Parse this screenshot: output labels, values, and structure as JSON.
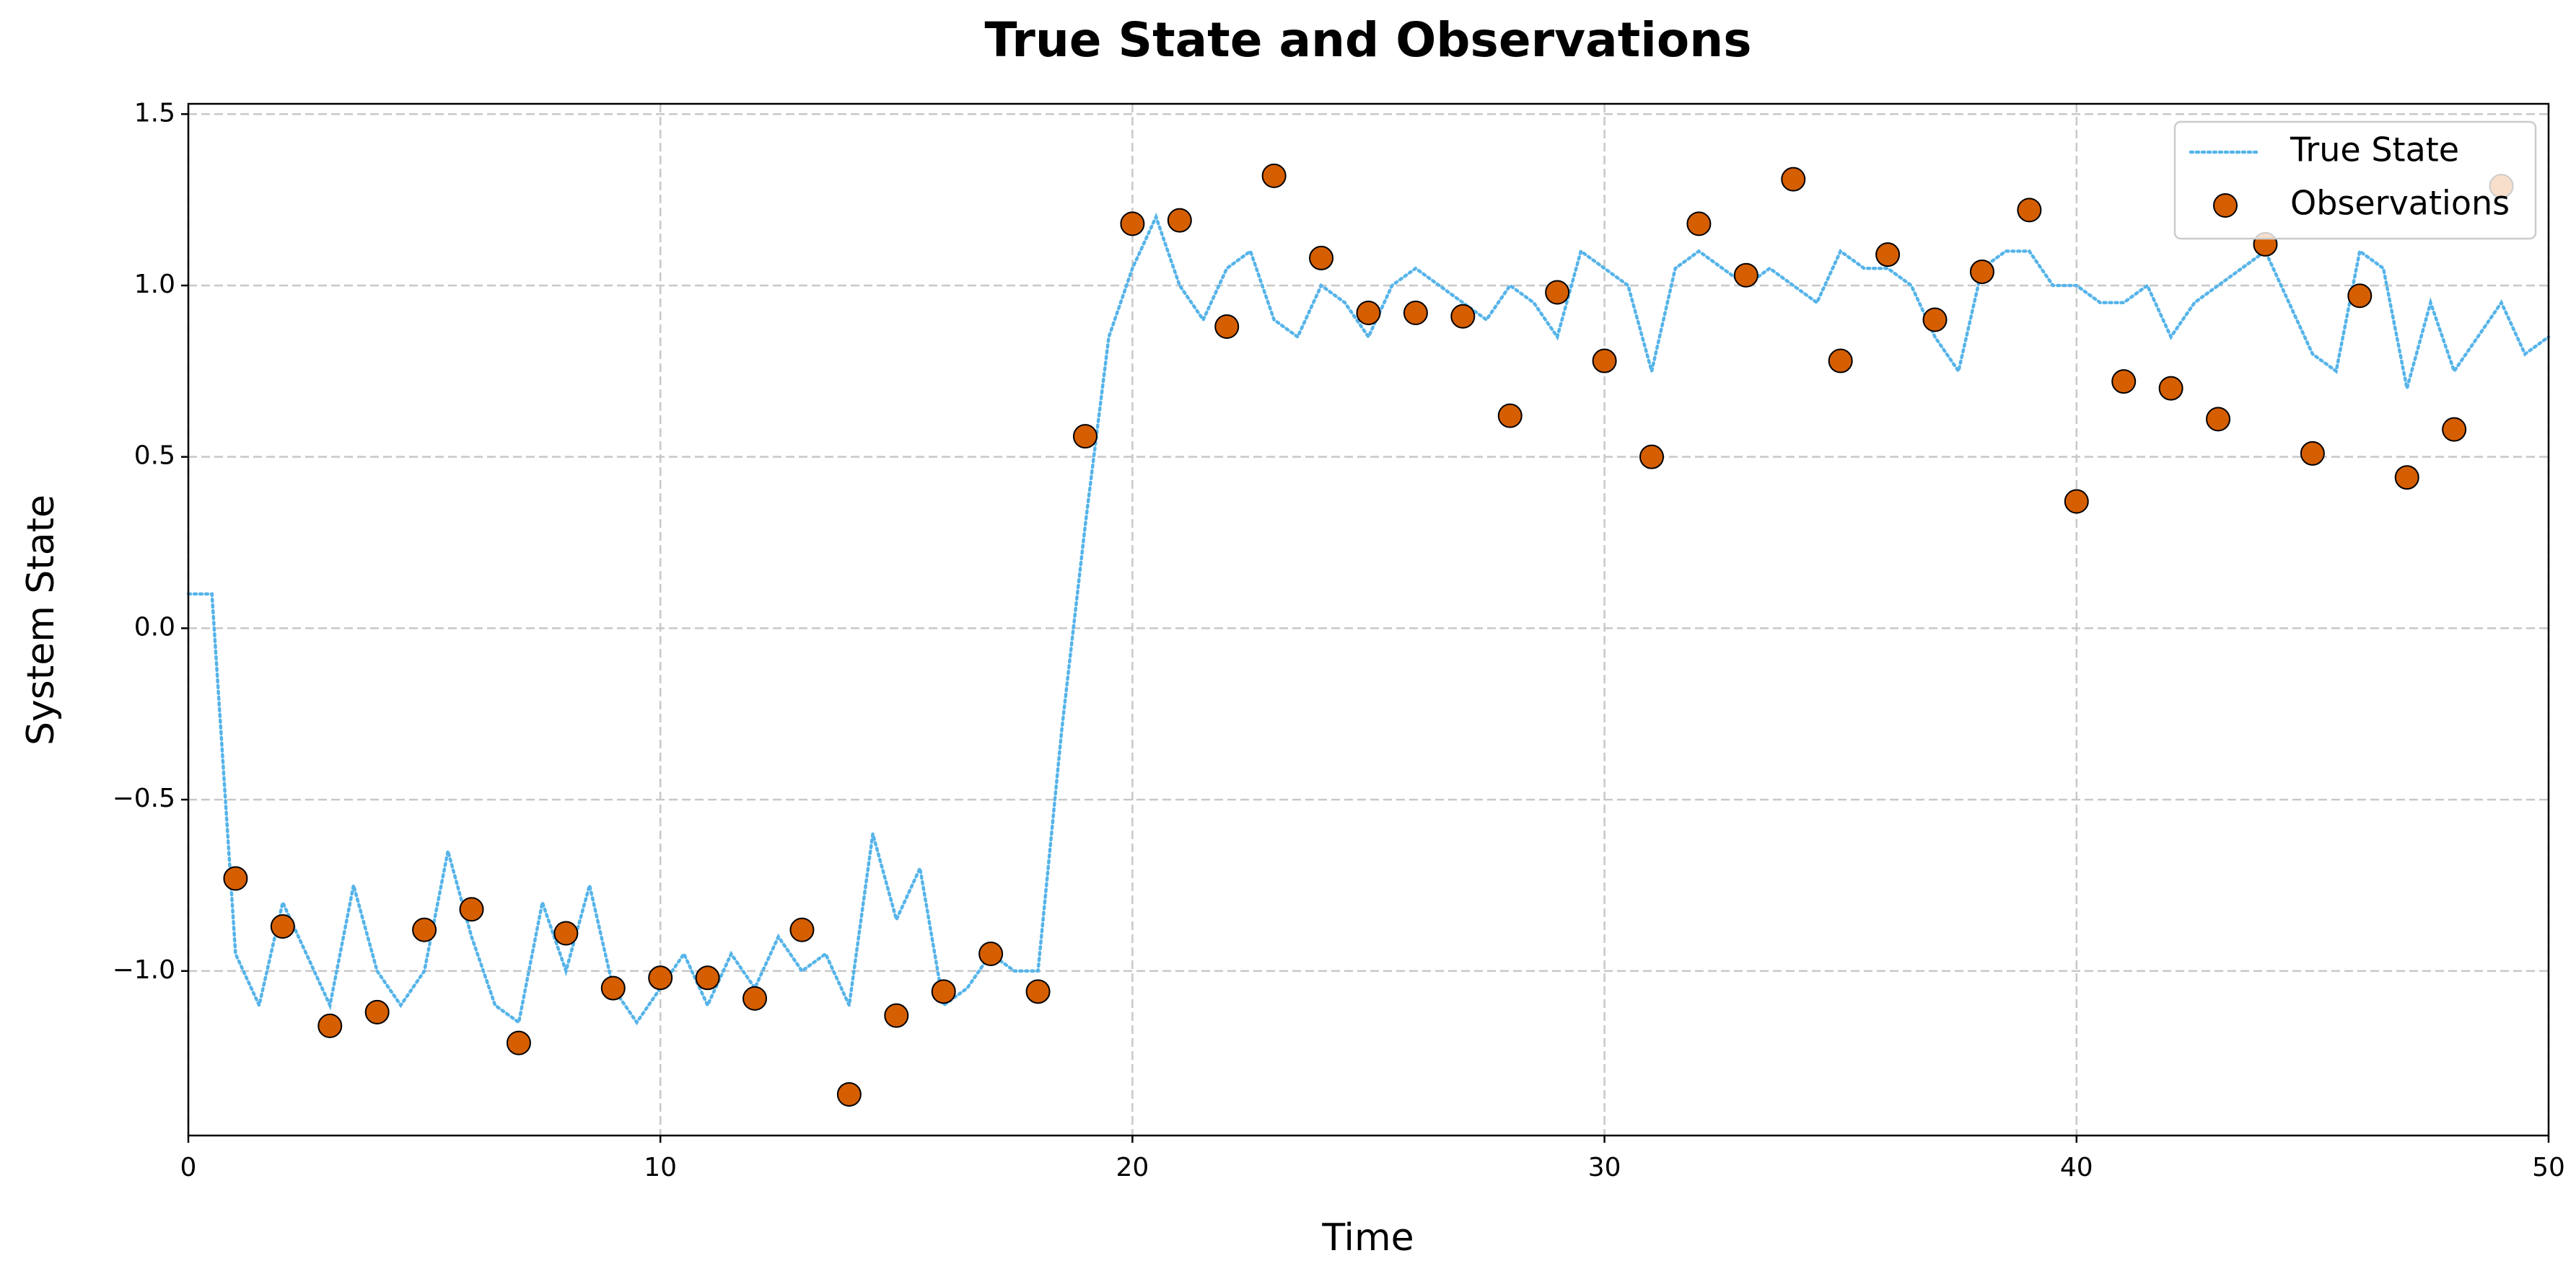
{
  "chart_data": {
    "type": "line",
    "title": "True State and Observations",
    "x_label": "Time",
    "y_label": "System State",
    "xlim": [
      0,
      50
    ],
    "ylim": [
      -1.48,
      1.53
    ],
    "xticks": [
      0,
      10,
      20,
      30,
      40,
      50
    ],
    "yticks": [
      {
        "value": -1,
        "label": "−1.0"
      },
      {
        "value": -0.5,
        "label": "−0.5"
      },
      {
        "value": 0,
        "label": "0.0"
      },
      0.5,
      {
        "value": 1,
        "label": "1.0"
      },
      1.5
    ],
    "grid": true,
    "legend": "upper right",
    "series": [
      {
        "name": "True State",
        "type": "line",
        "color": "#56b4e9",
        "x": [
          0,
          0.5,
          1,
          1.5,
          2,
          2.5,
          3,
          3.5,
          4,
          4.5,
          5,
          5.5,
          6,
          6.5,
          7,
          7.5,
          8,
          8.5,
          9,
          9.5,
          10,
          10.5,
          11,
          11.5,
          12,
          12.5,
          13,
          13.5,
          14,
          14.5,
          15,
          15.5,
          16,
          16.5,
          17,
          17.5,
          18,
          18.5,
          19,
          19.5,
          20,
          20.5,
          21,
          21.5,
          22,
          22.5,
          23,
          23.5,
          24,
          24.5,
          25,
          25.5,
          26,
          26.5,
          27,
          27.5,
          28,
          28.5,
          29,
          29.5,
          30,
          30.5,
          31,
          31.5,
          32,
          32.5,
          33,
          33.5,
          34,
          34.5,
          35,
          35.5,
          36,
          36.5,
          37,
          37.5,
          38,
          38.5,
          39,
          39.5,
          40,
          40.5,
          41,
          41.5,
          42,
          42.5,
          43,
          43.5,
          44,
          44.5,
          45,
          45.5,
          46,
          46.5,
          47,
          47.5,
          48,
          48.5,
          49,
          49.5,
          50
        ],
        "values": [
          0.1,
          0.1,
          -0.95,
          -1.1,
          -0.8,
          -0.95,
          -1.1,
          -0.75,
          -1.0,
          -1.1,
          -1.0,
          -0.65,
          -0.9,
          -1.1,
          -1.15,
          -0.8,
          -1.0,
          -0.75,
          -1.05,
          -1.15,
          -1.05,
          -0.95,
          -1.1,
          -0.95,
          -1.05,
          -0.9,
          -1.0,
          -0.95,
          -1.1,
          -0.6,
          -0.85,
          -0.7,
          -1.1,
          -1.05,
          -0.95,
          -1.0,
          -1.0,
          -0.3,
          0.3,
          0.85,
          1.05,
          1.2,
          1.0,
          0.9,
          1.05,
          1.1,
          0.9,
          0.85,
          1.0,
          0.95,
          0.85,
          1.0,
          1.05,
          1.0,
          0.95,
          0.9,
          1.0,
          0.95,
          0.85,
          1.1,
          1.05,
          1.0,
          0.75,
          1.05,
          1.1,
          1.05,
          1.0,
          1.05,
          1.0,
          0.95,
          1.1,
          1.05,
          1.05,
          1.0,
          0.85,
          0.75,
          1.05,
          1.1,
          1.1,
          1.0,
          1.0,
          0.95,
          0.95,
          1.0,
          0.85,
          0.95,
          1.0,
          1.05,
          1.1,
          0.95,
          0.8,
          0.75,
          1.1,
          1.05,
          0.7,
          0.95,
          0.75,
          0.85,
          0.95,
          0.8,
          0.85
        ]
      },
      {
        "name": "Observations",
        "type": "scatter",
        "color": "#d55e00",
        "x": [
          1,
          2,
          3,
          4,
          5,
          6,
          7,
          8,
          9,
          10,
          11,
          12,
          13,
          14,
          15,
          16,
          17,
          18,
          19,
          20,
          21,
          22,
          23,
          24,
          25,
          26,
          27,
          28,
          29,
          30,
          31,
          32,
          33,
          34,
          35,
          36,
          37,
          38,
          39,
          40,
          41,
          42,
          43,
          44,
          45,
          46,
          47,
          48,
          49
        ],
        "values": [
          -0.73,
          -0.87,
          -1.16,
          -1.12,
          -0.88,
          -0.82,
          -1.21,
          -0.89,
          -1.05,
          -1.02,
          -1.02,
          -1.08,
          -0.88,
          -1.36,
          -1.13,
          -1.06,
          -0.95,
          -1.06,
          0.56,
          1.18,
          1.19,
          0.88,
          1.32,
          1.08,
          0.92,
          0.92,
          0.91,
          0.62,
          0.98,
          0.78,
          0.5,
          1.18,
          1.03,
          1.31,
          0.78,
          1.09,
          0.9,
          1.04,
          1.22,
          0.37,
          0.72,
          0.7,
          0.61,
          1.12,
          0.51,
          0.97,
          0.44,
          0.58,
          1.29
        ]
      }
    ]
  }
}
